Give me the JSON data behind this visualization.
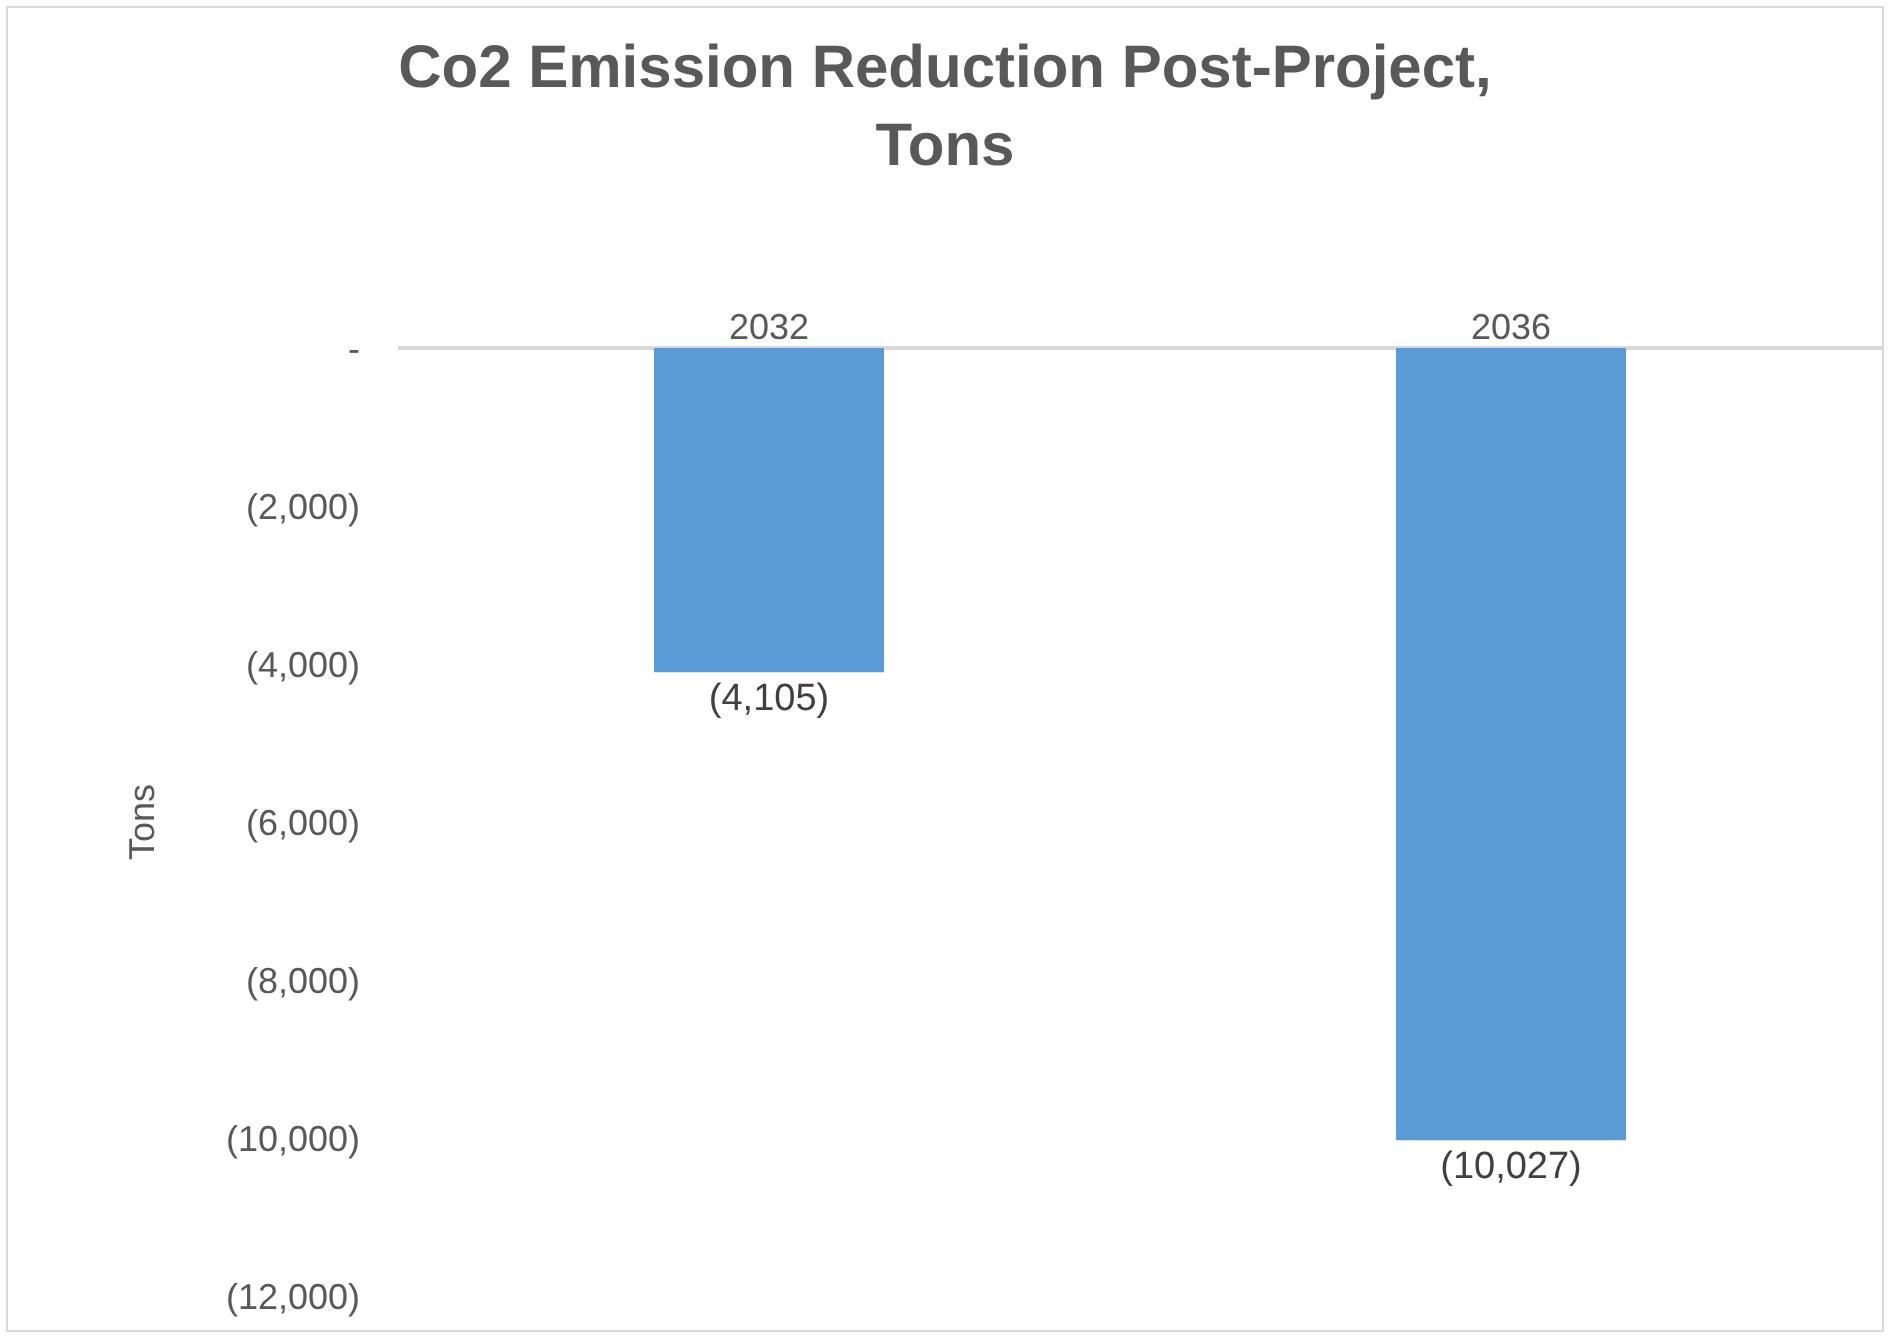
{
  "chart_data": {
    "type": "bar",
    "title": "Co2 Emission Reduction Post-Project,\nTons",
    "ylabel": "Tons",
    "categories": [
      "2032",
      "2036"
    ],
    "values": [
      -4105,
      -10027
    ],
    "color": "#5b9bd5",
    "value_labels": [
      "(4,105)",
      "(10,027)"
    ],
    "ylim": [
      -12000,
      0
    ],
    "yticks": [
      {
        "value": 0,
        "label": "-"
      },
      {
        "value": -2000,
        "label": "(2,000)"
      },
      {
        "value": -4000,
        "label": "(4,000)"
      },
      {
        "value": -6000,
        "label": "(6,000)"
      },
      {
        "value": -8000,
        "label": "(8,000)"
      },
      {
        "value": -10000,
        "label": "(10,000)"
      },
      {
        "value": -12000,
        "label": "(12,000)"
      }
    ],
    "grid": false
  }
}
